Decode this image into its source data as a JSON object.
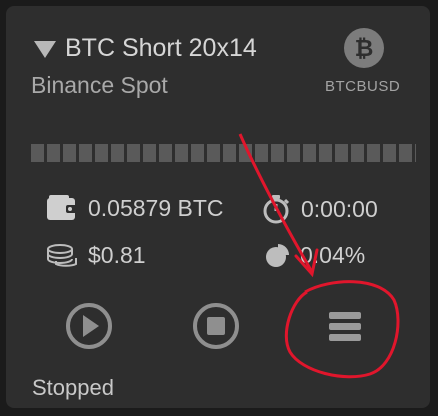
{
  "bot": {
    "title": "BTC Short 20x14",
    "exchange": "Binance Spot",
    "coin_symbol": "₿",
    "pair": "BTCBUSD",
    "progress_fraction": 1.0,
    "status": "Stopped"
  },
  "stats": {
    "balance": "0.05879 BTC",
    "runtime": "0:00:00",
    "profit": "$0.81",
    "profit_percent": "0.04%"
  },
  "controls": {
    "play": "play-icon",
    "stop": "stop-icon",
    "menu": "menu-icon"
  },
  "colors": {
    "background": "#1b1b1b",
    "card": "#2e2e2e",
    "annotation": "#e0162c"
  }
}
